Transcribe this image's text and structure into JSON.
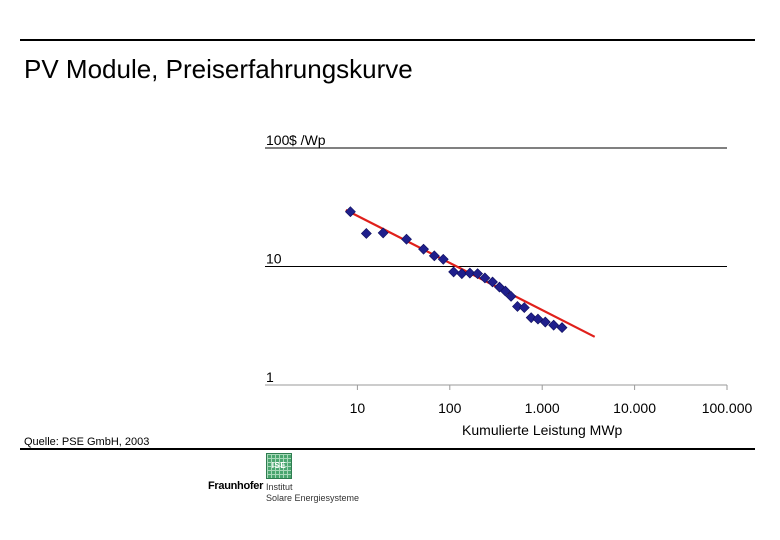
{
  "title": "PV Module, Preiserfahrungskurve",
  "source": "Quelle: PSE GmbH, 2003",
  "logo": {
    "name": "Fraunhofer",
    "box_text": "ISE",
    "institute_line1": "Institut",
    "institute_line2": "Solare Energiesysteme"
  },
  "colors": {
    "points": "#1f1f8c",
    "trendline": "#e0201b",
    "logo": "#4aa56f"
  },
  "chart_data": {
    "type": "scatter",
    "xscale": "log",
    "yscale": "log",
    "xlim": [
      1,
      100000
    ],
    "ylim": [
      1,
      100
    ],
    "xlabel": "Kumulierte Leistung MWp",
    "ylabel": "$ /Wp",
    "xticks": [
      {
        "value": 10,
        "label": "10"
      },
      {
        "value": 100,
        "label": "100"
      },
      {
        "value": 1000,
        "label": "1.000"
      },
      {
        "value": 10000,
        "label": "10.000"
      },
      {
        "value": 100000,
        "label": "100.000"
      }
    ],
    "yticks": [
      {
        "value": 100,
        "label": "100"
      },
      {
        "value": 10,
        "label": "10"
      },
      {
        "value": 1,
        "label": "1"
      }
    ],
    "grid": "horizontal",
    "marker": "diamond",
    "points": [
      {
        "x": 8.4,
        "y": 29
      },
      {
        "x": 12.5,
        "y": 19
      },
      {
        "x": 19,
        "y": 19.2
      },
      {
        "x": 34,
        "y": 17
      },
      {
        "x": 52,
        "y": 14
      },
      {
        "x": 68,
        "y": 12.3
      },
      {
        "x": 85,
        "y": 11.5
      },
      {
        "x": 110,
        "y": 9
      },
      {
        "x": 135,
        "y": 8.7
      },
      {
        "x": 165,
        "y": 8.8
      },
      {
        "x": 200,
        "y": 8.7
      },
      {
        "x": 240,
        "y": 8
      },
      {
        "x": 290,
        "y": 7.4
      },
      {
        "x": 345,
        "y": 6.7
      },
      {
        "x": 400,
        "y": 6.2
      },
      {
        "x": 460,
        "y": 5.6
      },
      {
        "x": 540,
        "y": 4.6
      },
      {
        "x": 640,
        "y": 4.5
      },
      {
        "x": 760,
        "y": 3.7
      },
      {
        "x": 900,
        "y": 3.6
      },
      {
        "x": 1080,
        "y": 3.4
      },
      {
        "x": 1330,
        "y": 3.2
      },
      {
        "x": 1640,
        "y": 3.05
      }
    ],
    "trendline": {
      "x": [
        7.5,
        3700
      ],
      "y": [
        30,
        2.55
      ]
    }
  }
}
